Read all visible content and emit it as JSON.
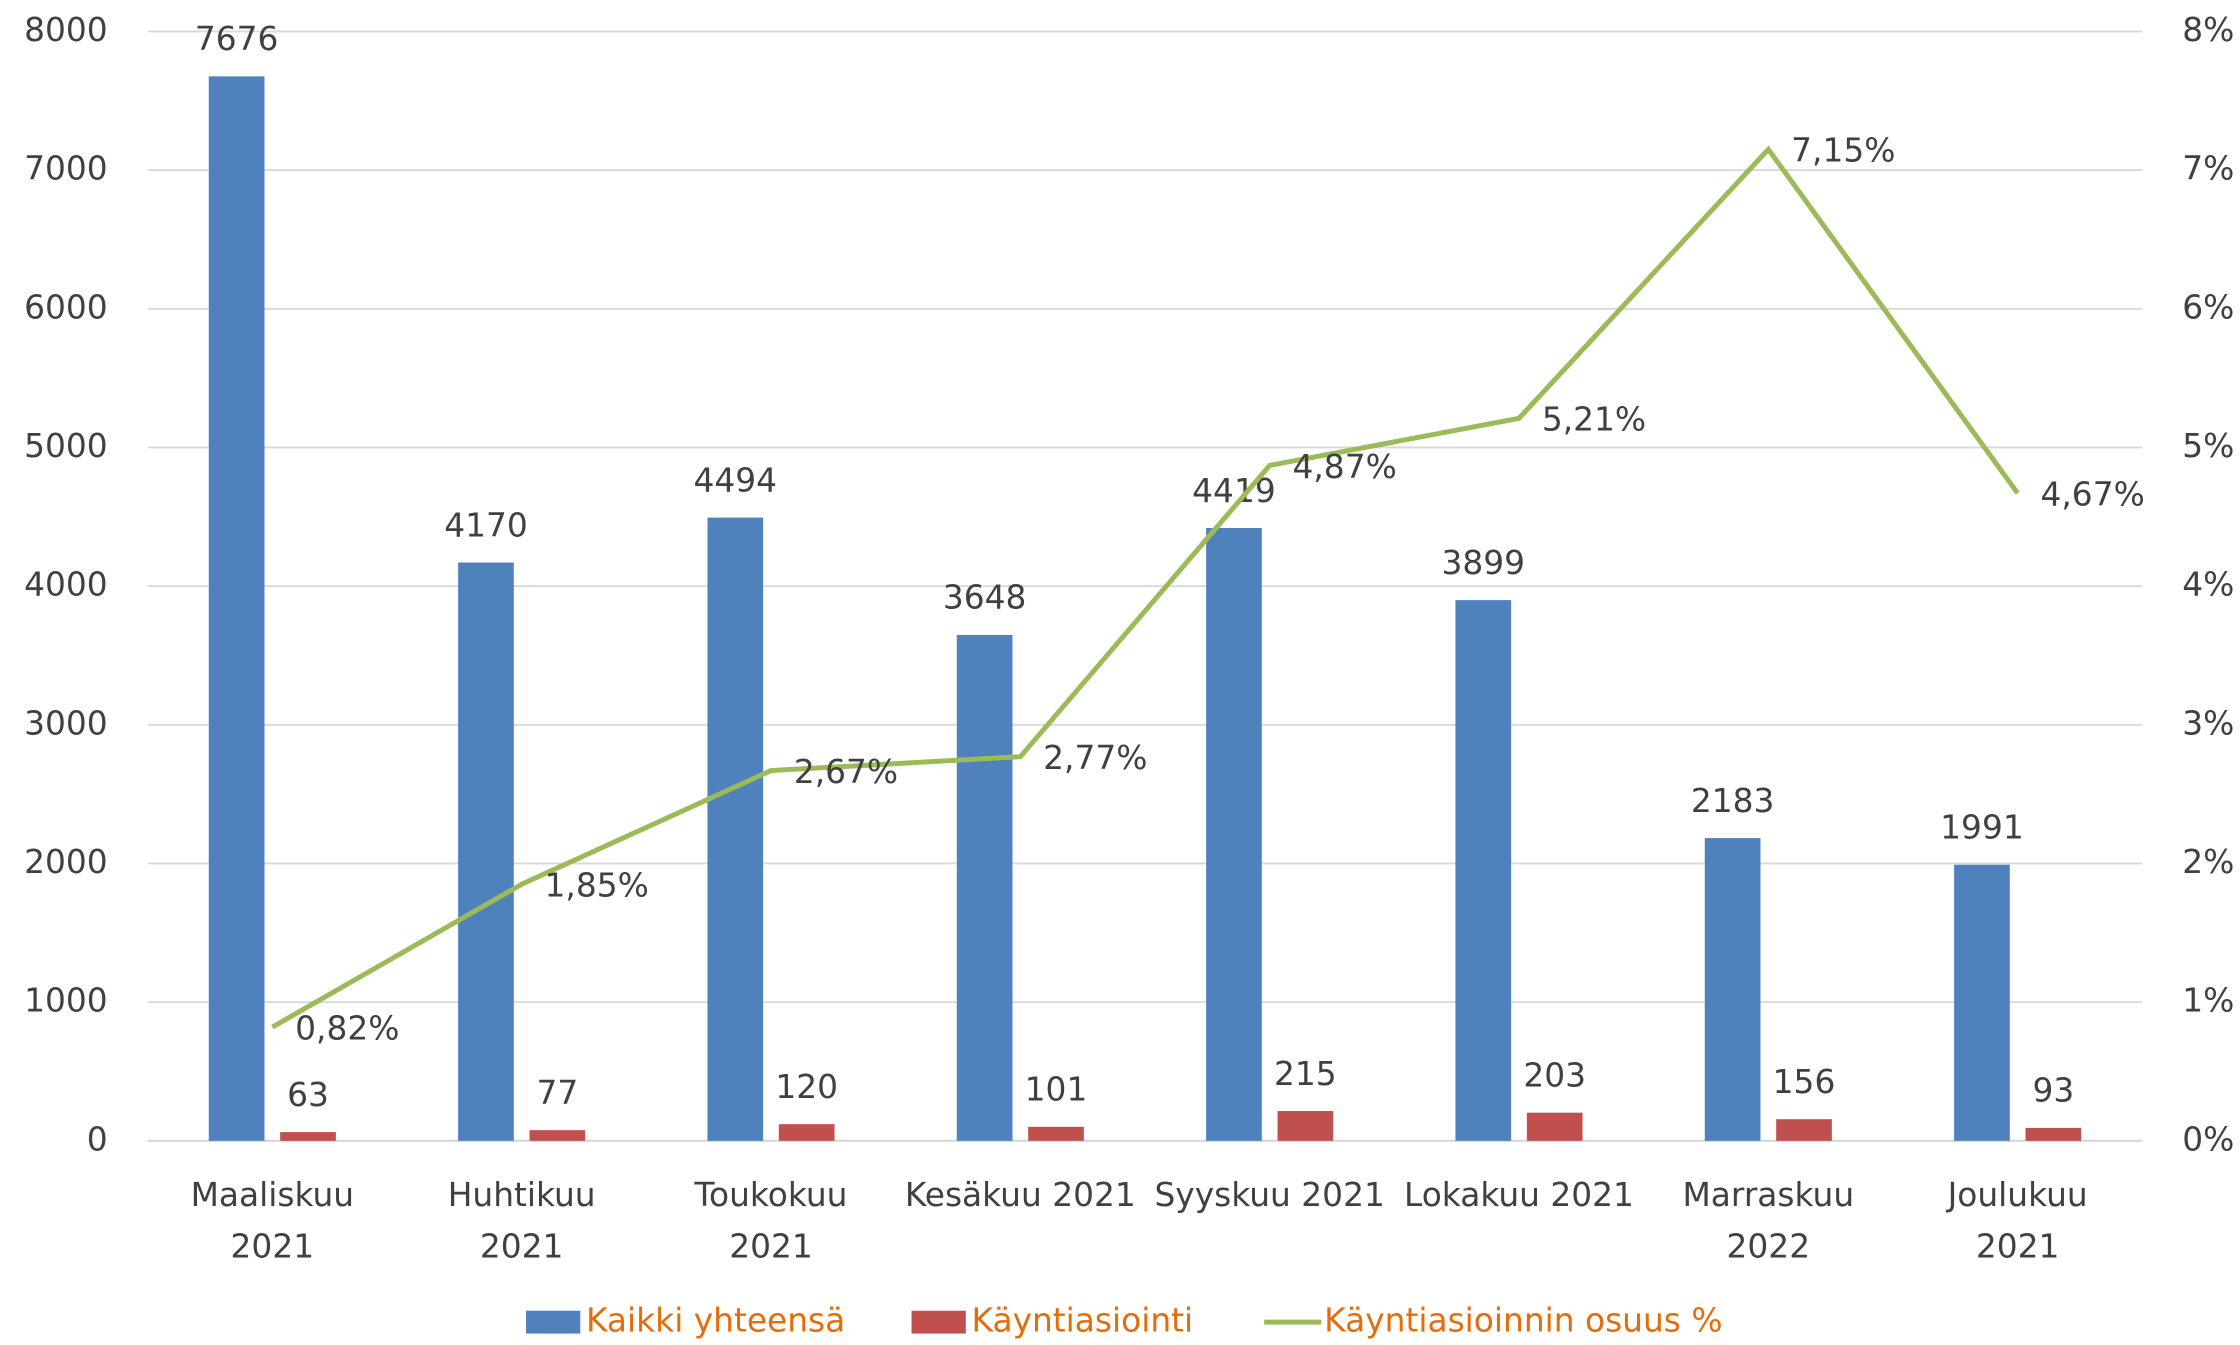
{
  "chart_data": {
    "type": "bar",
    "categories": [
      [
        "Maaliskuu",
        "2021"
      ],
      [
        "Huhtikuu",
        "2021"
      ],
      [
        "Toukokuu",
        "2021"
      ],
      [
        "Kesäkuu 2021"
      ],
      [
        "Syyskuu 2021"
      ],
      [
        "Lokakuu 2021"
      ],
      [
        "Marraskuu",
        "2022"
      ],
      [
        "Joulukuu",
        "2021"
      ]
    ],
    "series": [
      {
        "name": "Kaikki yhteensä",
        "color": "#4f81bd",
        "type": "bar",
        "values": [
          7676,
          4170,
          4494,
          3648,
          4419,
          3899,
          2183,
          1991
        ]
      },
      {
        "name": "Käyntiasiointi",
        "color": "#c0504d",
        "type": "bar",
        "values": [
          63,
          77,
          120,
          101,
          215,
          203,
          156,
          93
        ]
      },
      {
        "name": "Käyntiasioinnin osuus %",
        "color": "#9bbb59",
        "type": "line",
        "axis": "y2",
        "values": [
          0.82,
          1.85,
          2.67,
          2.77,
          4.87,
          5.21,
          7.15,
          4.67
        ],
        "value_labels": [
          "0,82%",
          "1,85%",
          "2,67%",
          "2,77%",
          "4,87%",
          "5,21%",
          "7,15%",
          "4,67%"
        ]
      }
    ],
    "ylim": [
      0,
      8000
    ],
    "yticks": [
      0,
      1000,
      2000,
      3000,
      4000,
      5000,
      6000,
      7000,
      8000
    ],
    "y2lim": [
      0,
      8
    ],
    "y2ticks": [
      {
        "value": 0,
        "label": "0%"
      },
      {
        "value": 1,
        "label": "1%"
      },
      {
        "value": 2,
        "label": "2%"
      },
      {
        "value": 3,
        "label": "3%"
      },
      {
        "value": 4,
        "label": "4%"
      },
      {
        "value": 5,
        "label": "5%"
      },
      {
        "value": 6,
        "label": "6%"
      },
      {
        "value": 7,
        "label": "7%"
      },
      {
        "value": 8,
        "label": "8%"
      }
    ],
    "grid": true,
    "legend": "bottom"
  }
}
